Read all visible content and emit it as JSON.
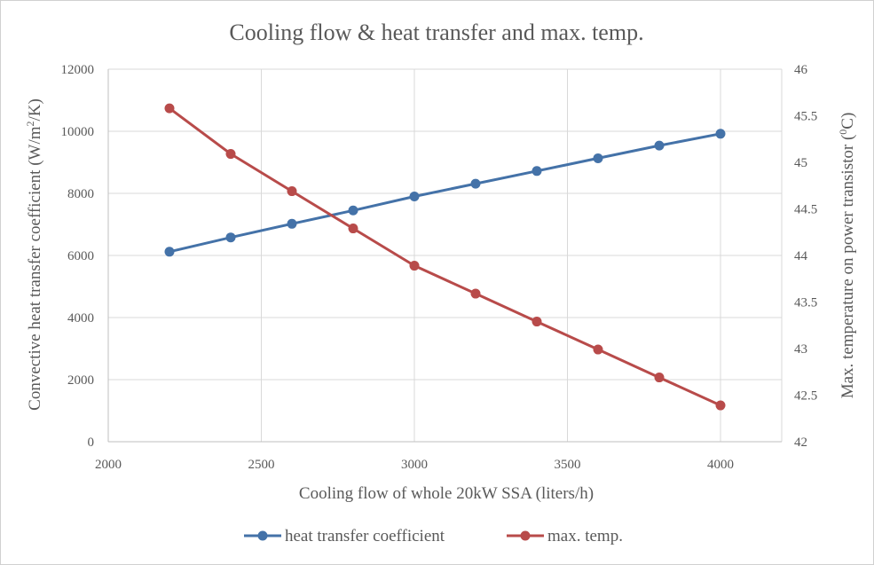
{
  "chart_data": {
    "type": "line",
    "title": "Cooling flow & heat transfer and max. temp.",
    "xlabel": "Cooling flow of whole 20kW SSA  (liters/h)",
    "ylabel": "Convective heat transfer coefficient (W/m",
    "ylabel_sup": "2",
    "ylabel_end": "/K)",
    "y2label": "Max. temperature on power transistor (",
    "y2label_sup": "0",
    "y2label_end": "C)",
    "x": [
      2200,
      2400,
      2600,
      2800,
      3000,
      3200,
      3400,
      3600,
      3800,
      4000
    ],
    "xlim": [
      2000,
      4200
    ],
    "xticks": [
      "2000",
      "2500",
      "3000",
      "3500",
      "4000"
    ],
    "ylim": [
      0,
      12000
    ],
    "yticks": [
      "0",
      "2000",
      "4000",
      "6000",
      "8000",
      "10000",
      "12000"
    ],
    "y2lim": [
      42,
      46
    ],
    "y2ticks": [
      "42",
      "42.5",
      "43",
      "43.5",
      "44",
      "44.5",
      "45",
      "45.5",
      "46"
    ],
    "grid": true,
    "legend_position": "bottom",
    "series": [
      {
        "name": "heat transfer coefficient",
        "axis": "left",
        "color": "#4472A8",
        "values": [
          6120,
          6580,
          7020,
          7450,
          7900,
          8310,
          8720,
          9130,
          9540,
          9920
        ]
      },
      {
        "name": "max. temp.",
        "axis": "right",
        "color": "#B84B4A",
        "values": [
          45.58,
          45.09,
          44.69,
          44.29,
          43.89,
          43.59,
          43.29,
          42.99,
          42.69,
          42.39
        ]
      }
    ]
  }
}
